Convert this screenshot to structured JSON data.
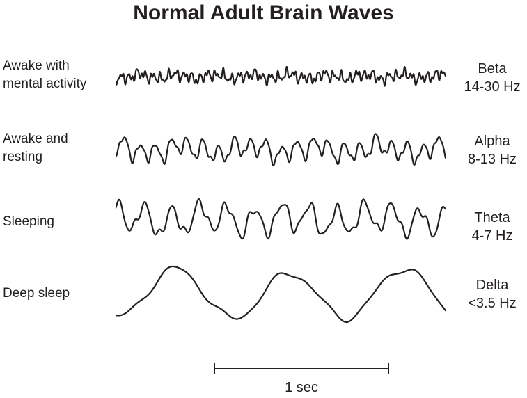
{
  "ink": "#231f20",
  "background": "#ffffff",
  "title": "Normal Adult Brain Waves",
  "rows": [
    {
      "state_line1": "Awake with",
      "state_line2": "mental activity",
      "band": "Beta",
      "freq": "14-30 Hz",
      "wave": {
        "band": "beta",
        "cycles": 42,
        "amplitude": 14,
        "seed": 11,
        "components": [
          [
            1,
            0.5
          ],
          [
            1.73,
            0.32
          ],
          [
            0.21,
            0.28
          ],
          [
            2.6,
            0.22
          ],
          [
            0.47,
            0.18
          ]
        ]
      }
    },
    {
      "state_line1": "Awake and",
      "state_line2": "resting",
      "band": "Alpha",
      "freq": "8-13 Hz",
      "wave": {
        "band": "alpha",
        "cycles": 21,
        "amplitude": 23,
        "seed": 5,
        "components": [
          [
            1,
            0.62
          ],
          [
            1.9,
            0.18
          ],
          [
            0.24,
            0.28
          ],
          [
            2.9,
            0.1
          ],
          [
            0.55,
            0.18
          ]
        ]
      }
    },
    {
      "state_line1": "Sleeping",
      "state_line2": "",
      "band": "Theta",
      "freq": "4-7 Hz",
      "wave": {
        "band": "theta",
        "cycles": 12,
        "amplitude": 29,
        "seed": 9,
        "components": [
          [
            1,
            0.7
          ],
          [
            2.15,
            0.22
          ],
          [
            0.33,
            0.18
          ],
          [
            3.4,
            0.08
          ]
        ]
      }
    },
    {
      "state_line1": "Deep sleep",
      "state_line2": "",
      "band": "Delta",
      "freq": "<3.5 Hz",
      "wave": {
        "band": "delta",
        "cycles": 2.9,
        "amplitude": 40,
        "seed": 3,
        "components": [
          [
            1,
            0.82
          ],
          [
            2.3,
            0.1
          ],
          [
            4.1,
            0.05
          ],
          [
            0.45,
            0.08
          ]
        ]
      }
    }
  ],
  "scalebar": {
    "label": "1 sec"
  }
}
